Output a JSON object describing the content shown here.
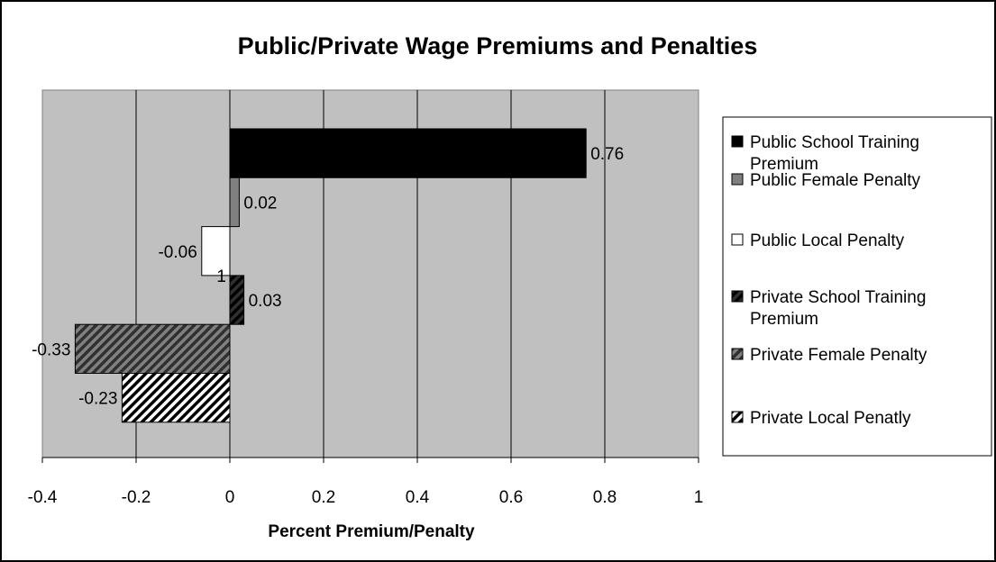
{
  "chart_data": {
    "type": "bar",
    "orientation": "horizontal",
    "title": "Public/Private Wage Premiums and Penalties",
    "xlabel": "Percent Premium/Penalty",
    "ylabel": "",
    "xlim": [
      -0.4,
      1
    ],
    "xticks": [
      -0.4,
      -0.2,
      0,
      0.2,
      0.4,
      0.6,
      0.8,
      1
    ],
    "xtick_labels": [
      "-0.4",
      "-0.2",
      "0",
      "0.2",
      "0.4",
      "0.6",
      "0.8",
      "1"
    ],
    "category_tick_labels": [
      "1"
    ],
    "grid": true,
    "plot_background": "#c0c0c0",
    "legend_position": "right",
    "series": [
      {
        "name": "Public School Training Premium",
        "value": 0.76,
        "label": "0.76",
        "fill": "solid",
        "color": "#000000"
      },
      {
        "name": "Public Female Penalty",
        "value": 0.02,
        "label": "0.02",
        "fill": "solid",
        "color": "#808080"
      },
      {
        "name": "Public Local Penalty",
        "value": -0.06,
        "label": "-0.06",
        "fill": "solid",
        "color": "#ffffff"
      },
      {
        "name": "Private School Training Premium",
        "value": 0.03,
        "label": "0.03",
        "fill": "hatch",
        "color": "#000000",
        "hatch_bg": "#303030"
      },
      {
        "name": "Private Female Penalty",
        "value": -0.33,
        "label": "-0.33",
        "fill": "hatch",
        "color": "#303030",
        "hatch_bg": "#808080"
      },
      {
        "name": "Private Local Penatly",
        "value": -0.23,
        "label": "-0.23",
        "fill": "hatch",
        "color": "#000000",
        "hatch_bg": "#ffffff"
      }
    ]
  }
}
